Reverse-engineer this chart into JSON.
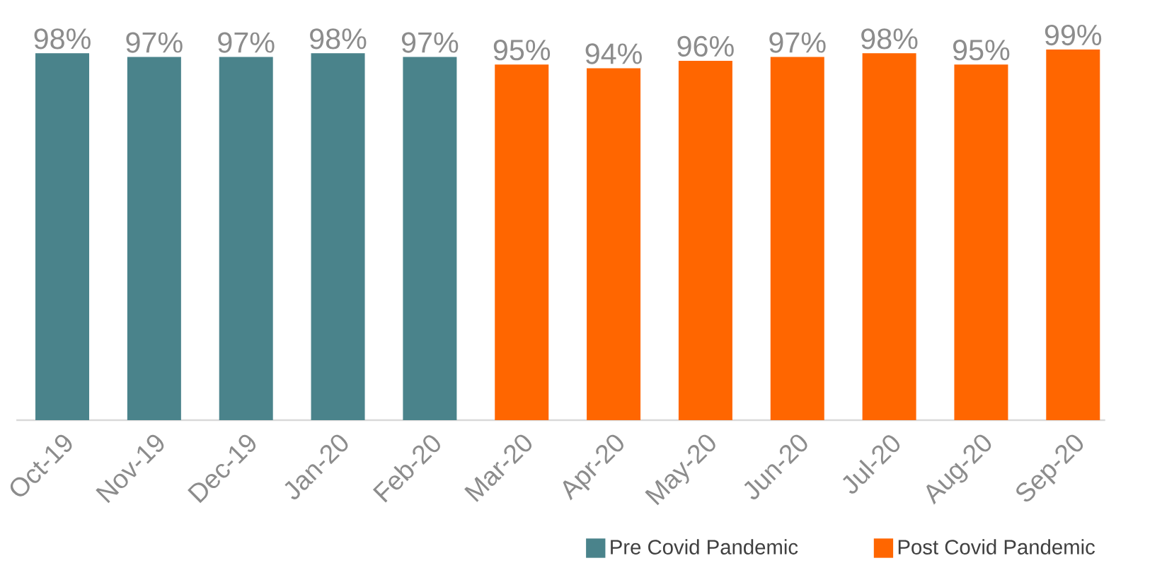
{
  "chart_data": {
    "type": "bar",
    "categories": [
      "Oct-19",
      "Nov-19",
      "Dec-19",
      "Jan-20",
      "Feb-20",
      "Mar-20",
      "Apr-20",
      "May-20",
      "Jun-20",
      "Jul-20",
      "Aug-20",
      "Sep-20"
    ],
    "series": [
      {
        "name": "Pre Covid Pandemic",
        "color": "#4a838b",
        "values": [
          98,
          97,
          97,
          98,
          97,
          null,
          null,
          null,
          null,
          null,
          null,
          null
        ],
        "value_labels": [
          "98%",
          "97%",
          "97%",
          "98%",
          "97%",
          null,
          null,
          null,
          null,
          null,
          null,
          null
        ]
      },
      {
        "name": "Post Covid Pandemic",
        "color": "#ff6600",
        "values": [
          null,
          null,
          null,
          null,
          null,
          95,
          94,
          96,
          97,
          98,
          95,
          99
        ],
        "value_labels": [
          null,
          null,
          null,
          null,
          null,
          "95%",
          "94%",
          "96%",
          "97%",
          "98%",
          "95%",
          "99%"
        ]
      }
    ],
    "legend": "bottom right"
  }
}
